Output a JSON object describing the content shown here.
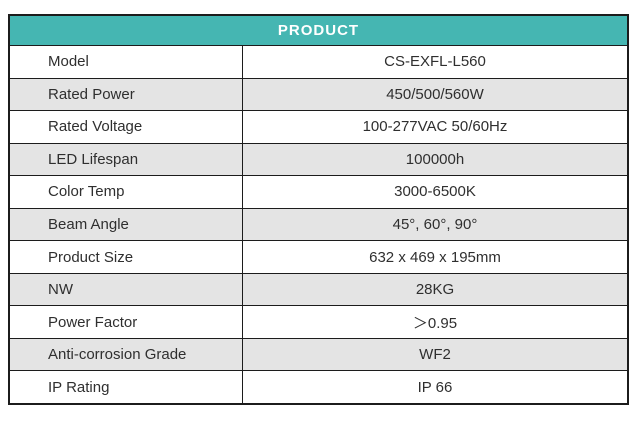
{
  "header": {
    "title": "PRODUCT"
  },
  "colors": {
    "header_bg": "#45b6b2",
    "header_text": "#ffffff",
    "row_alt_bg": "#e4e4e4",
    "border": "#1c1c1c",
    "text": "#2f2f2f"
  },
  "table": {
    "rows": [
      {
        "label": "Model",
        "value": "CS-EXFL-L560"
      },
      {
        "label": "Rated Power",
        "value": "450/500/560W"
      },
      {
        "label": "Rated Voltage",
        "value": "100-277VAC 50/60Hz"
      },
      {
        "label": "LED Lifespan",
        "value": "100000h"
      },
      {
        "label": "Color Temp",
        "value": "3000-6500K"
      },
      {
        "label": "Beam Angle",
        "value": "45°, 60°, 90°"
      },
      {
        "label": "Product Size",
        "value": "632 x 469 x 195mm"
      },
      {
        "label": "NW",
        "value": "28KG"
      },
      {
        "label": "Power Factor",
        "value": "＞0.95"
      },
      {
        "label": "Anti-corrosion Grade",
        "value": "WF2"
      },
      {
        "label": "IP Rating",
        "value": "IP 66"
      }
    ]
  }
}
